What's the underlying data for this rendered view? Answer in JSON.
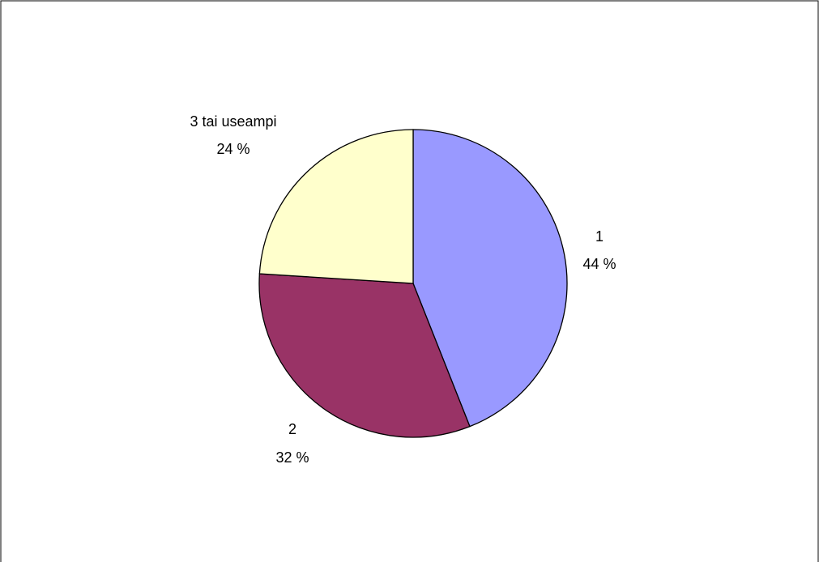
{
  "chart_data": {
    "type": "pie",
    "title": "",
    "legend": "none",
    "slices": [
      {
        "category": "1",
        "value": 44,
        "percent_label": "44 %",
        "color": "#9999FF"
      },
      {
        "category": "2",
        "value": 32,
        "percent_label": "32 %",
        "color": "#993366"
      },
      {
        "category": "3 tai useampi",
        "value": 24,
        "percent_label": "24 %",
        "color": "#FFFFCC"
      }
    ],
    "start_angle_deg": 0,
    "direction": "clockwise",
    "border_color": "#000000"
  }
}
